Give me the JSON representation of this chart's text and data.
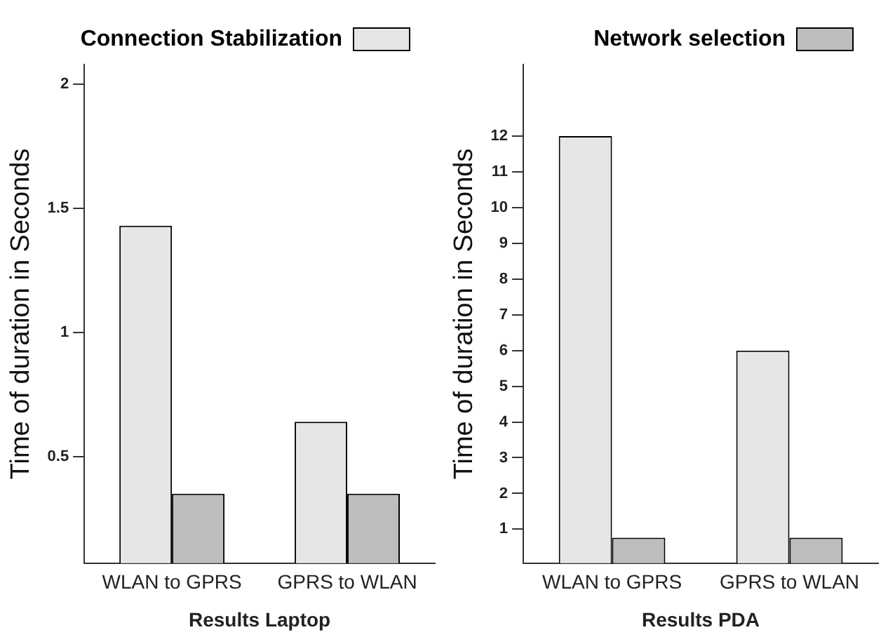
{
  "chart_data": [
    {
      "type": "bar",
      "xlabel": "Results Laptop",
      "ylabel": "Time of duration in Seconds",
      "categories": [
        "WLAN to GPRS",
        "GPRS to WLAN"
      ],
      "series": [
        {
          "name": "Connection Stabilization",
          "color": "#e6e6e6",
          "values": [
            1.43,
            0.64
          ]
        },
        {
          "color": "#bdbdbd",
          "values": [
            0.35,
            0.35
          ]
        }
      ],
      "ylim": [
        0.07,
        2.08
      ],
      "yticks": [
        0.5,
        1,
        1.5,
        2
      ],
      "grid": false,
      "legend": "top"
    },
    {
      "type": "bar",
      "xlabel": "Results PDA",
      "ylabel": "Time of duration in Seconds",
      "categories": [
        "WLAN to GPRS",
        "GPRS to WLAN"
      ],
      "series": [
        {
          "color": "#e6e6e6",
          "values": [
            12,
            6
          ]
        },
        {
          "name": "Network selection",
          "color": "#bdbdbd",
          "values": [
            0.76,
            0.76
          ]
        }
      ],
      "ylim": [
        0.05,
        14
      ],
      "yticks": [
        1,
        2,
        3,
        4,
        5,
        6,
        7,
        8,
        9,
        10,
        11,
        12
      ],
      "grid": false,
      "legend": "top"
    }
  ]
}
